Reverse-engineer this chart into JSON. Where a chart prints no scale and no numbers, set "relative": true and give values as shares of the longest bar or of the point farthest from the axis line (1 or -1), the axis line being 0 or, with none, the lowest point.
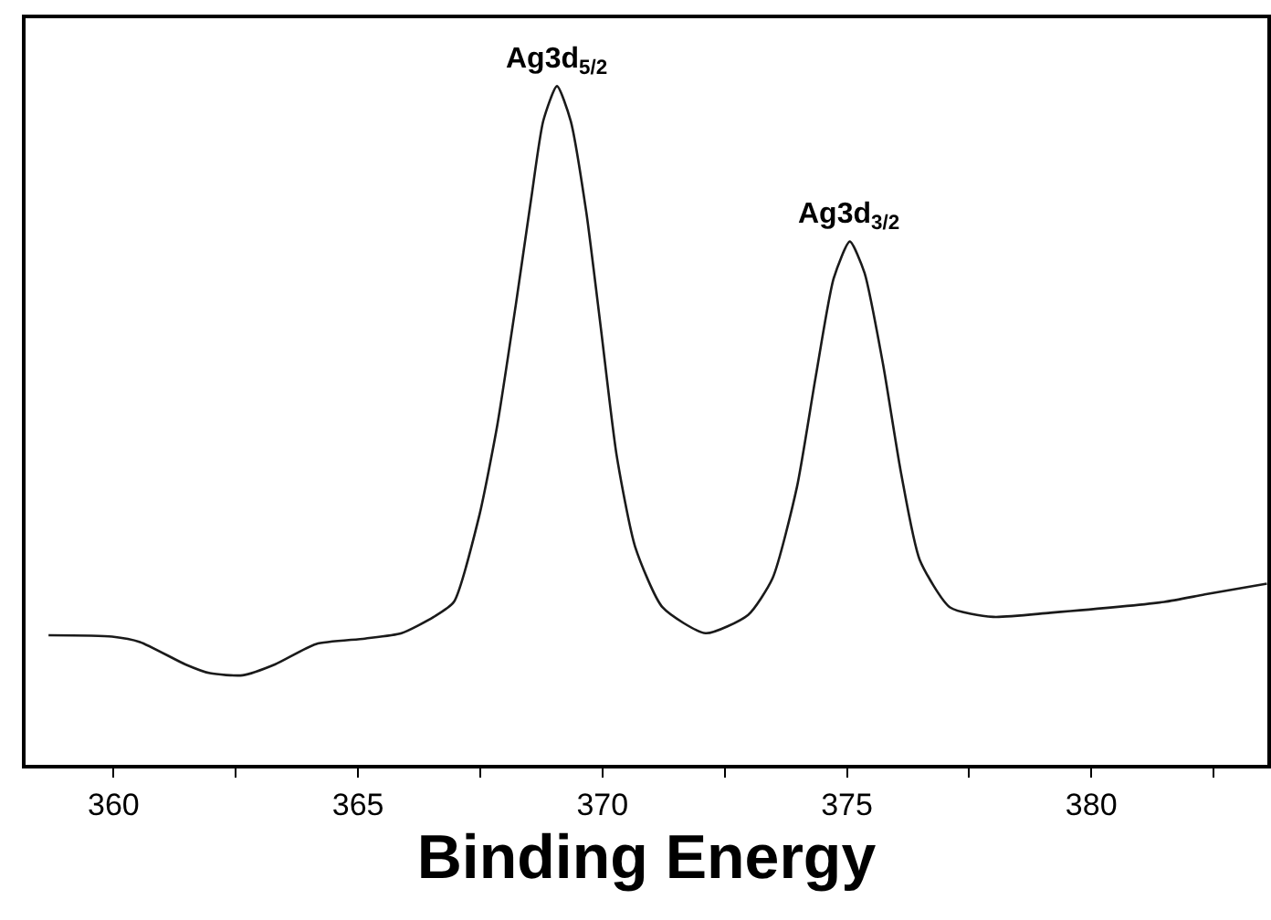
{
  "chart_data": {
    "type": "line",
    "xlabel": "Binding Energy",
    "relative": true,
    "color": "#1a1a1a",
    "marker": "none",
    "line_style": "solid",
    "legend": false,
    "x": [
      358.67,
      359.97,
      360.54,
      361.47,
      361.97,
      362.64,
      363.3,
      364.14,
      365.14,
      365.89,
      366.55,
      366.96,
      367.48,
      367.85,
      368.23,
      368.54,
      368.79,
      369.07,
      369.35,
      369.67,
      369.98,
      370.29,
      370.67,
      371.23,
      372.11,
      372.98,
      373.48,
      373.98,
      374.36,
      374.73,
      375.06,
      375.36,
      375.74,
      376.11,
      376.49,
      377.11,
      377.99,
      379.16,
      381.49,
      382.32,
      383.59
    ],
    "values": [
      0.191,
      0.189,
      0.181,
      0.148,
      0.135,
      0.132,
      0.148,
      0.178,
      0.186,
      0.194,
      0.218,
      0.24,
      0.367,
      0.501,
      0.679,
      0.833,
      0.949,
      1,
      0.949,
      0.814,
      0.636,
      0.456,
      0.321,
      0.232,
      0.194,
      0.221,
      0.275,
      0.41,
      0.571,
      0.717,
      0.771,
      0.725,
      0.59,
      0.429,
      0.302,
      0.232,
      0.218,
      0.224,
      0.24,
      0.251,
      0.267
    ],
    "xlim": [
      358.2,
      383.6
    ],
    "xticks": [
      360,
      {
        "value": 362.5,
        "label": null
      },
      365,
      {
        "value": 367.5,
        "label": null
      },
      370,
      {
        "value": 372.5,
        "label": null
      },
      375,
      {
        "value": 377.5,
        "label": null
      },
      380,
      {
        "value": 382.5,
        "label": null
      }
    ],
    "annotations": [
      {
        "text": "Ag3d$_{5/2}$",
        "x": 369.07,
        "y": 1
      },
      {
        "text": "Ag3d$_{3/2}$",
        "x": 375.06,
        "y": 0.771
      }
    ]
  }
}
